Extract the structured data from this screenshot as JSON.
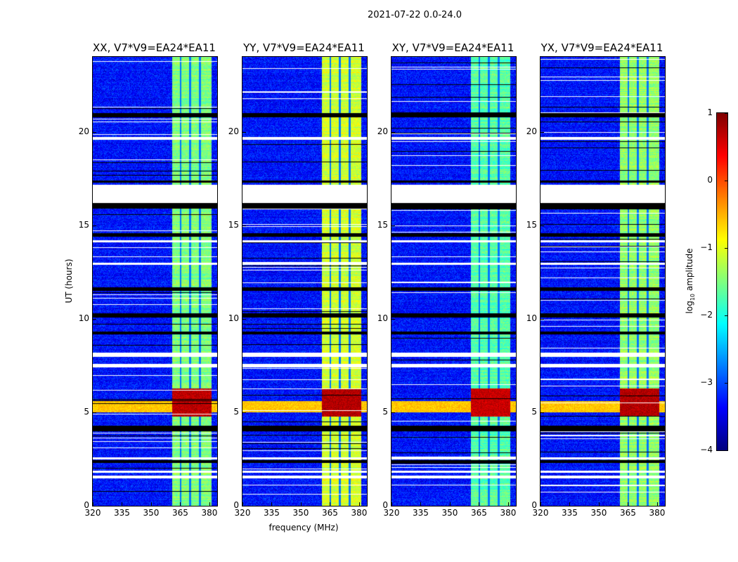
{
  "figure": {
    "suptitle": "2021-07-22 0.0-24.0",
    "xlabel": "frequency (MHz)",
    "ylabel": "UT (hours)",
    "colorbar": {
      "label_prefix": "log",
      "label_sub": "10",
      "label_suffix": " amplitude",
      "range": [
        -4,
        1
      ],
      "ticks": [
        "1",
        "0",
        "−1",
        "−2",
        "−3",
        "−4"
      ],
      "tick_values": [
        1,
        0,
        -1,
        -2,
        -3,
        -4
      ],
      "colormap": "jet"
    }
  },
  "chart_data": {
    "type": "heatmap",
    "xlim": [
      320,
      384
    ],
    "ylim": [
      0,
      24
    ],
    "x_ticks": [
      320,
      335,
      350,
      365,
      380
    ],
    "x_tick_labels": [
      "320",
      "335",
      "350",
      "365",
      "380"
    ],
    "y_ticks": [
      0,
      5,
      10,
      15,
      20
    ],
    "y_tick_labels": [
      "0",
      "5",
      "10",
      "15",
      "20"
    ],
    "value_range": [
      -4,
      1
    ],
    "background_level": -3.3,
    "bright_band_mhz": [
      360.5,
      381
    ],
    "band_gaps_mhz": [
      365,
      370,
      375
    ],
    "band_level": -1.5,
    "rfi_event_hours": [
      4.8,
      6.3
    ],
    "rfi_broadband_hours": [
      5.0,
      5.6
    ],
    "flagged_white_hours": [
      [
        16.2,
        17.2
      ],
      [
        7.4,
        7.6
      ],
      [
        8.0,
        8.2
      ],
      [
        19.6,
        19.75
      ],
      [
        2.5,
        2.6
      ],
      [
        1.5,
        1.65
      ],
      [
        1.8,
        1.9
      ],
      [
        12.9,
        13.0
      ],
      [
        14.1,
        14.2
      ]
    ],
    "flagged_black_hours": [
      [
        15.9,
        16.2
      ],
      [
        14.4,
        14.6
      ],
      [
        10.1,
        10.3
      ],
      [
        4.0,
        4.3
      ],
      [
        2.3,
        2.45
      ],
      [
        20.8,
        21.0
      ],
      [
        17.3,
        17.4
      ],
      [
        11.5,
        11.7
      ],
      [
        9.2,
        9.35
      ]
    ],
    "panels": [
      {
        "title": "XX, V7*V9=EA24*EA11",
        "band_boost": 0.0,
        "rfi_strength": 1.0
      },
      {
        "title": "YY, V7*V9=EA24*EA11",
        "band_boost": 0.4,
        "rfi_strength": 1.1
      },
      {
        "title": "XY, V7*V9=EA24*EA11",
        "band_boost": -0.2,
        "rfi_strength": 0.9
      },
      {
        "title": "YX, V7*V9=EA24*EA11",
        "band_boost": 0.1,
        "rfi_strength": 1.1
      }
    ]
  }
}
